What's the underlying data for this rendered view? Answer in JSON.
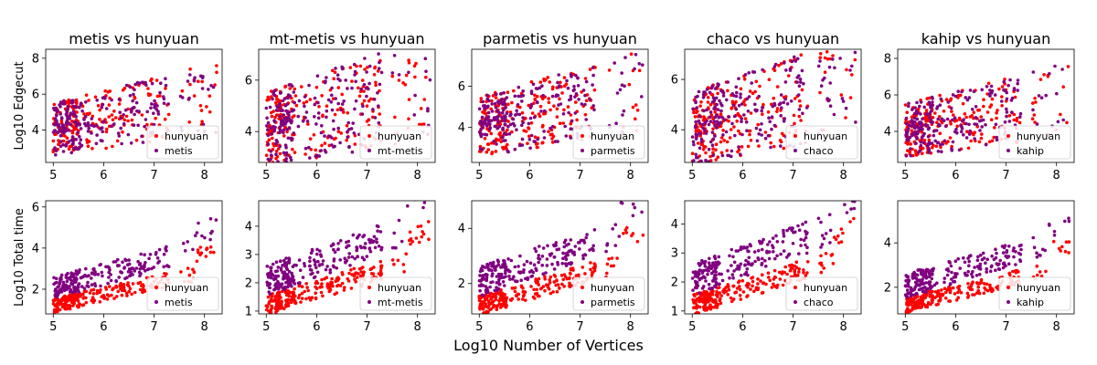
{
  "figure": {
    "xlabel": "Log10 Number of Vertices",
    "row_ylabels": [
      "Log10 Edgecut",
      "Log10 Total time"
    ]
  },
  "colors": {
    "hunyuan": "#ff0000",
    "other": "#800080"
  },
  "chart_data": [
    {
      "type": "scatter",
      "row": 0,
      "col": 0,
      "title": "metis vs hunyuan",
      "ylabel": "Log10 Edgecut",
      "xlim": [
        4.85,
        8.35
      ],
      "ylim": [
        2.2,
        8.5
      ],
      "xticks": [
        5,
        6,
        7,
        8
      ],
      "yticks": [
        4,
        6,
        8
      ],
      "legend": [
        "hunyuan",
        "metis"
      ],
      "legend_position": "lower-right"
    },
    {
      "type": "scatter",
      "row": 0,
      "col": 1,
      "title": "mt-metis vs hunyuan",
      "ylabel": "",
      "xlim": [
        4.85,
        8.35
      ],
      "ylim": [
        2.8,
        7.2
      ],
      "xticks": [
        5,
        6,
        7,
        8
      ],
      "yticks": [
        4,
        6
      ],
      "legend": [
        "hunyuan",
        "mt-metis"
      ],
      "legend_position": "lower-right"
    },
    {
      "type": "scatter",
      "row": 0,
      "col": 2,
      "title": "parmetis vs hunyuan",
      "ylabel": "",
      "xlim": [
        4.85,
        8.35
      ],
      "ylim": [
        2.3,
        7.8
      ],
      "xticks": [
        5,
        6,
        7,
        8
      ],
      "yticks": [
        4,
        6
      ],
      "legend": [
        "hunyuan",
        "parmetis"
      ],
      "legend_position": "lower-right"
    },
    {
      "type": "scatter",
      "row": 0,
      "col": 3,
      "title": "chaco vs hunyuan",
      "ylabel": "",
      "xlim": [
        4.85,
        8.35
      ],
      "ylim": [
        2.7,
        7.2
      ],
      "xticks": [
        5,
        6,
        7,
        8
      ],
      "yticks": [
        4,
        6
      ],
      "legend": [
        "hunyuan",
        "chaco"
      ],
      "legend_position": "lower-right"
    },
    {
      "type": "scatter",
      "row": 0,
      "col": 4,
      "title": "kahip vs hunyuan",
      "ylabel": "",
      "xlim": [
        4.85,
        8.35
      ],
      "ylim": [
        2.3,
        8.5
      ],
      "xticks": [
        5,
        6,
        7,
        8
      ],
      "yticks": [
        4,
        6,
        8
      ],
      "legend": [
        "hunyuan",
        "kahip"
      ],
      "legend_position": "lower-right"
    },
    {
      "type": "scatter",
      "row": 1,
      "col": 0,
      "title": "",
      "ylabel": "Log10 Total time",
      "xlim": [
        4.85,
        8.35
      ],
      "ylim": [
        0.8,
        6.3
      ],
      "xticks": [
        5,
        6,
        7,
        8
      ],
      "yticks": [
        2,
        4,
        6
      ],
      "legend": [
        "hunyuan",
        "metis"
      ],
      "legend_position": "lower-right"
    },
    {
      "type": "scatter",
      "row": 1,
      "col": 1,
      "title": "",
      "ylabel": "",
      "xlim": [
        4.85,
        8.35
      ],
      "ylim": [
        0.9,
        4.9
      ],
      "xticks": [
        5,
        6,
        7,
        8
      ],
      "yticks": [
        1,
        2,
        3,
        4
      ],
      "legend": [
        "hunyuan",
        "mt-metis"
      ],
      "legend_position": "lower-right"
    },
    {
      "type": "scatter",
      "row": 1,
      "col": 2,
      "title": "",
      "ylabel": "",
      "xlim": [
        4.85,
        8.35
      ],
      "ylim": [
        0.9,
        5.0
      ],
      "xticks": [
        5,
        6,
        7,
        8
      ],
      "yticks": [
        2,
        4
      ],
      "legend": [
        "hunyuan",
        "parmetis"
      ],
      "legend_position": "lower-right"
    },
    {
      "type": "scatter",
      "row": 1,
      "col": 3,
      "title": "",
      "ylabel": "",
      "xlim": [
        4.85,
        8.35
      ],
      "ylim": [
        0.9,
        4.8
      ],
      "xticks": [
        5,
        6,
        7,
        8
      ],
      "yticks": [
        1,
        2,
        3,
        4
      ],
      "legend": [
        "hunyuan",
        "chaco"
      ],
      "legend_position": "lower-right"
    },
    {
      "type": "scatter",
      "row": 1,
      "col": 4,
      "title": "",
      "ylabel": "",
      "xlim": [
        4.85,
        8.35
      ],
      "ylim": [
        0.8,
        5.9
      ],
      "xticks": [
        5,
        6,
        7,
        8
      ],
      "yticks": [
        2,
        4
      ],
      "legend": [
        "hunyuan",
        "kahip"
      ],
      "legend_position": "lower-right"
    }
  ]
}
